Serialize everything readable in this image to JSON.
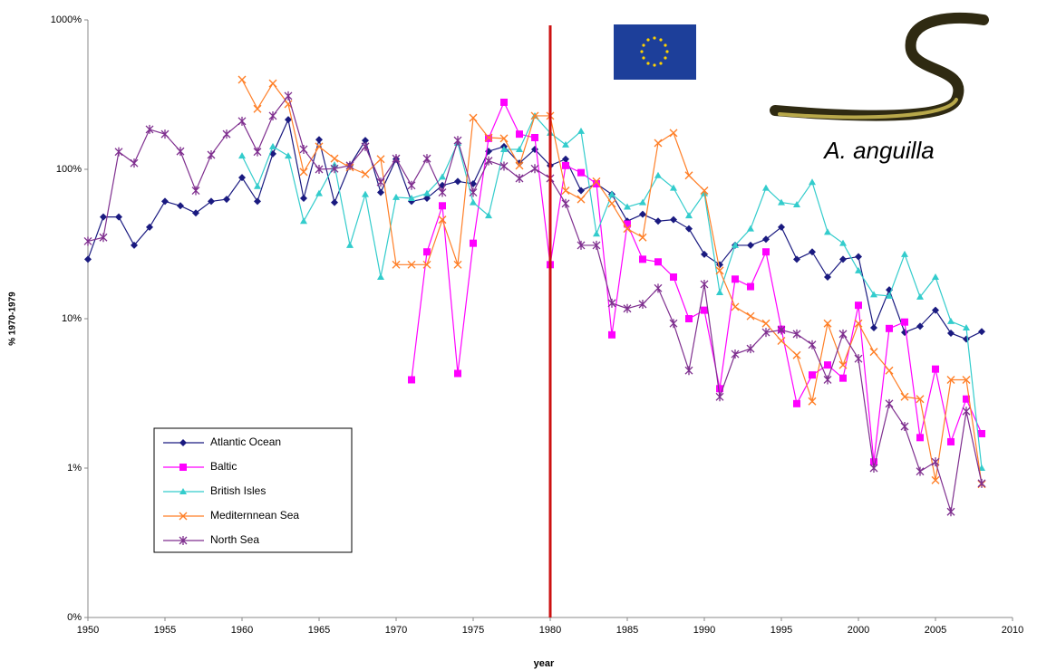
{
  "chart_data": {
    "type": "line",
    "x_label": "year",
    "y_label": "% 1970-1979",
    "annotation": "A. anguilla",
    "log_y": true,
    "legend": "lower left",
    "vline": 1980,
    "vline_color": "#cc1111",
    "xlim": [
      1950,
      2010
    ],
    "xticks": [
      1950,
      1955,
      1960,
      1965,
      1970,
      1975,
      1980,
      1985,
      1990,
      1995,
      2000,
      2005,
      2010
    ],
    "ylim": [
      0.1,
      1000
    ],
    "yticks": [
      {
        "value": 1000,
        "label": "1000%"
      },
      {
        "value": 100,
        "label": "100%"
      },
      {
        "value": 10,
        "label": "10%"
      },
      {
        "value": 1,
        "label": "1%"
      },
      {
        "value": 0.1,
        "label": "0%"
      }
    ],
    "x": [
      1950,
      1951,
      1952,
      1953,
      1954,
      1955,
      1956,
      1957,
      1958,
      1959,
      1960,
      1961,
      1962,
      1963,
      1964,
      1965,
      1966,
      1967,
      1968,
      1969,
      1970,
      1971,
      1972,
      1973,
      1974,
      1975,
      1976,
      1977,
      1978,
      1979,
      1980,
      1981,
      1982,
      1983,
      1984,
      1985,
      1986,
      1987,
      1988,
      1989,
      1990,
      1991,
      1992,
      1993,
      1994,
      1995,
      1996,
      1997,
      1998,
      1999,
      2000,
      2001,
      2002,
      2003,
      2004,
      2005,
      2006,
      2007,
      2008
    ],
    "series": [
      {
        "name": "Atlantic Ocean",
        "color": "#1a1a80",
        "marker": "diamond",
        "values": [
          25,
          48,
          48,
          31,
          41,
          61,
          57,
          51,
          61,
          63,
          88,
          61,
          127,
          215,
          64,
          158,
          60,
          106,
          156,
          70,
          117,
          61,
          64,
          78,
          83,
          80,
          132,
          142,
          110,
          136,
          106,
          117,
          72,
          80,
          68,
          45,
          50,
          45,
          46,
          40,
          27,
          23,
          31,
          31,
          34,
          41,
          25,
          28,
          19,
          25,
          26,
          8.7,
          15.6,
          8.1,
          8.9,
          11.4,
          8.0,
          7.3,
          8.2
        ]
      },
      {
        "name": "Baltic",
        "color": "#ff00ff",
        "marker": "square",
        "values": [
          null,
          null,
          null,
          null,
          null,
          null,
          null,
          null,
          null,
          null,
          null,
          null,
          null,
          null,
          null,
          null,
          null,
          null,
          null,
          null,
          null,
          3.9,
          28,
          57,
          4.3,
          32,
          161,
          281,
          172,
          163,
          23,
          106,
          95,
          80,
          7.8,
          43,
          25,
          24,
          19,
          10,
          11.4,
          3.4,
          18.4,
          16.4,
          28,
          8.5,
          2.7,
          4.2,
          4.9,
          4.0,
          12.3,
          1.1,
          8.6,
          9.5,
          1.6,
          4.6,
          1.5,
          2.9,
          1.7
        ]
      },
      {
        "name": "British Isles",
        "color": "#33cccc",
        "marker": "triangle",
        "values": [
          null,
          null,
          null,
          null,
          null,
          null,
          null,
          null,
          null,
          null,
          123,
          77,
          142,
          123,
          45,
          69,
          107,
          31,
          68,
          19,
          65,
          64,
          69,
          89,
          150,
          60,
          49,
          136,
          136,
          228,
          175,
          146,
          180,
          37,
          68,
          56,
          60,
          91,
          75,
          49,
          69,
          15,
          31,
          40,
          75,
          60,
          58,
          82,
          38,
          32,
          21,
          14.5,
          14.2,
          27,
          14,
          19,
          9.6,
          8.7,
          1.0
        ]
      },
      {
        "name": "Mediternnean Sea",
        "color": "#ff7f27",
        "marker": "cross",
        "values": [
          null,
          null,
          null,
          null,
          null,
          null,
          null,
          null,
          null,
          null,
          398,
          254,
          376,
          273,
          96,
          142,
          118,
          103,
          93,
          117,
          23,
          23,
          23,
          46,
          23,
          221,
          163,
          161,
          106,
          228,
          228,
          72,
          63,
          83,
          59,
          40,
          35,
          150,
          175,
          91,
          72,
          21,
          12,
          10.4,
          9.3,
          7.1,
          5.7,
          2.8,
          9.3,
          4.9,
          9.3,
          6.0,
          4.5,
          3.0,
          2.9,
          0.83,
          3.9,
          3.9,
          0.78
        ]
      },
      {
        "name": "North Sea",
        "color": "#7f2f8f",
        "marker": "star",
        "values": [
          33,
          35,
          131,
          110,
          185,
          172,
          132,
          72,
          125,
          172,
          210,
          131,
          228,
          310,
          136,
          100,
          101,
          106,
          142,
          82,
          118,
          78,
          118,
          70,
          156,
          70,
          114,
          105,
          87,
          101,
          87,
          59,
          31,
          31,
          12.7,
          11.7,
          12.5,
          16,
          9.3,
          4.5,
          17,
          3.0,
          5.8,
          6.3,
          8.1,
          8.4,
          7.9,
          6.7,
          3.9,
          7.9,
          5.4,
          1.0,
          2.7,
          1.9,
          0.95,
          1.1,
          0.51,
          2.4,
          0.79
        ]
      }
    ]
  }
}
